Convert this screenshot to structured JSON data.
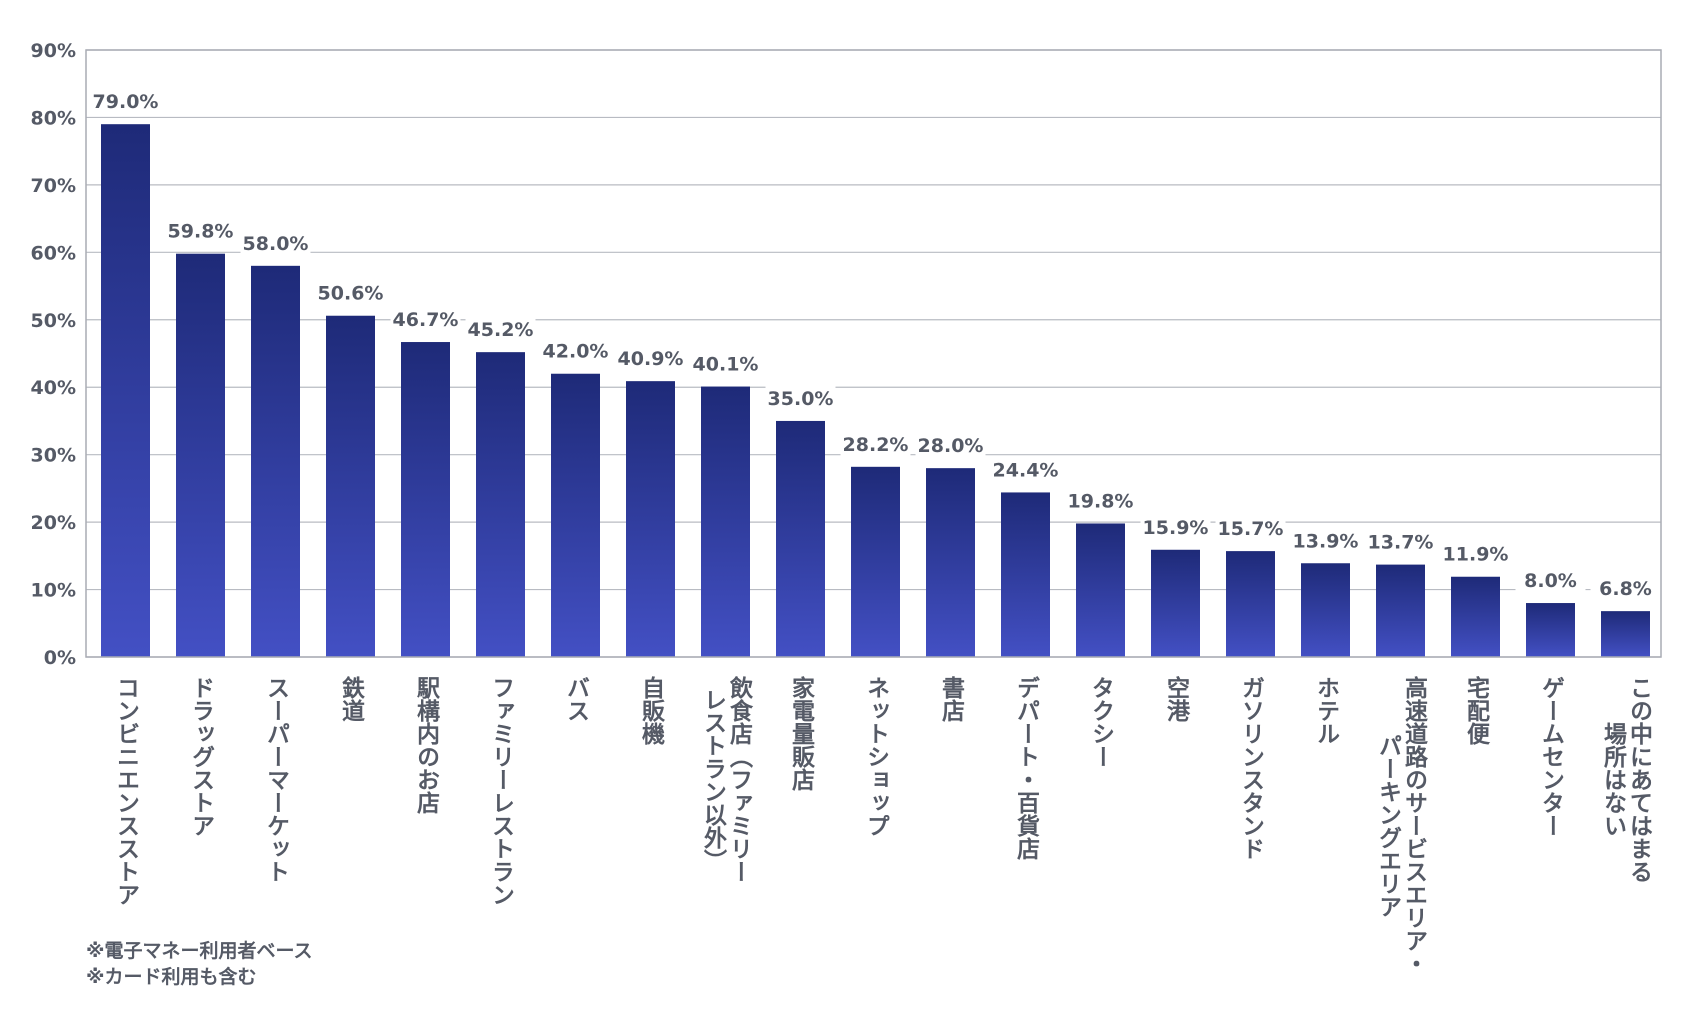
{
  "chart_data": {
    "type": "bar",
    "title": "",
    "xlabel": "",
    "ylabel": "",
    "ylim": [
      0,
      90
    ],
    "yticks": [
      "0%",
      "10%",
      "20%",
      "30%",
      "40%",
      "50%",
      "60%",
      "70%",
      "80%",
      "90%"
    ],
    "grid": true,
    "bar_color_top": "#1e2a78",
    "bar_color_bottom": "#4350c4",
    "categories": [
      "コンビニエンスストア",
      "ドラッグストア",
      "スーパーマーケット",
      "鉄道",
      "駅構内のお店",
      "ファミリーレストラン",
      "バス",
      "自販機",
      "飲食店（ファミリー\nレストラン以外）",
      "家電量販店",
      "ネットショップ",
      "書店",
      "デパート・百貨店",
      "タクシー",
      "空港",
      "ガソリンスタンド",
      "ホテル",
      "高速道路のサービスエリア・\nパーキングエリア",
      "宅配便",
      "ゲームセンター",
      "この中にあてはまる\n場所はない"
    ],
    "values": [
      79.0,
      59.8,
      58.0,
      50.6,
      46.7,
      45.2,
      42.0,
      40.9,
      40.1,
      35.0,
      28.2,
      28.0,
      24.4,
      19.8,
      15.9,
      15.7,
      13.9,
      13.7,
      11.9,
      8.0,
      6.8
    ],
    "value_labels": [
      "79.0%",
      "59.8%",
      "58.0%",
      "50.6%",
      "46.7%",
      "45.2%",
      "42.0%",
      "40.9%",
      "40.1%",
      "35.0%",
      "28.2%",
      "28.0%",
      "24.4%",
      "19.8%",
      "15.9%",
      "15.7%",
      "13.9%",
      "13.7%",
      "11.9%",
      "8.0%",
      "6.8%"
    ]
  },
  "notes": [
    "※電子マネー利用者ベース",
    "※カード利用も含む"
  ]
}
